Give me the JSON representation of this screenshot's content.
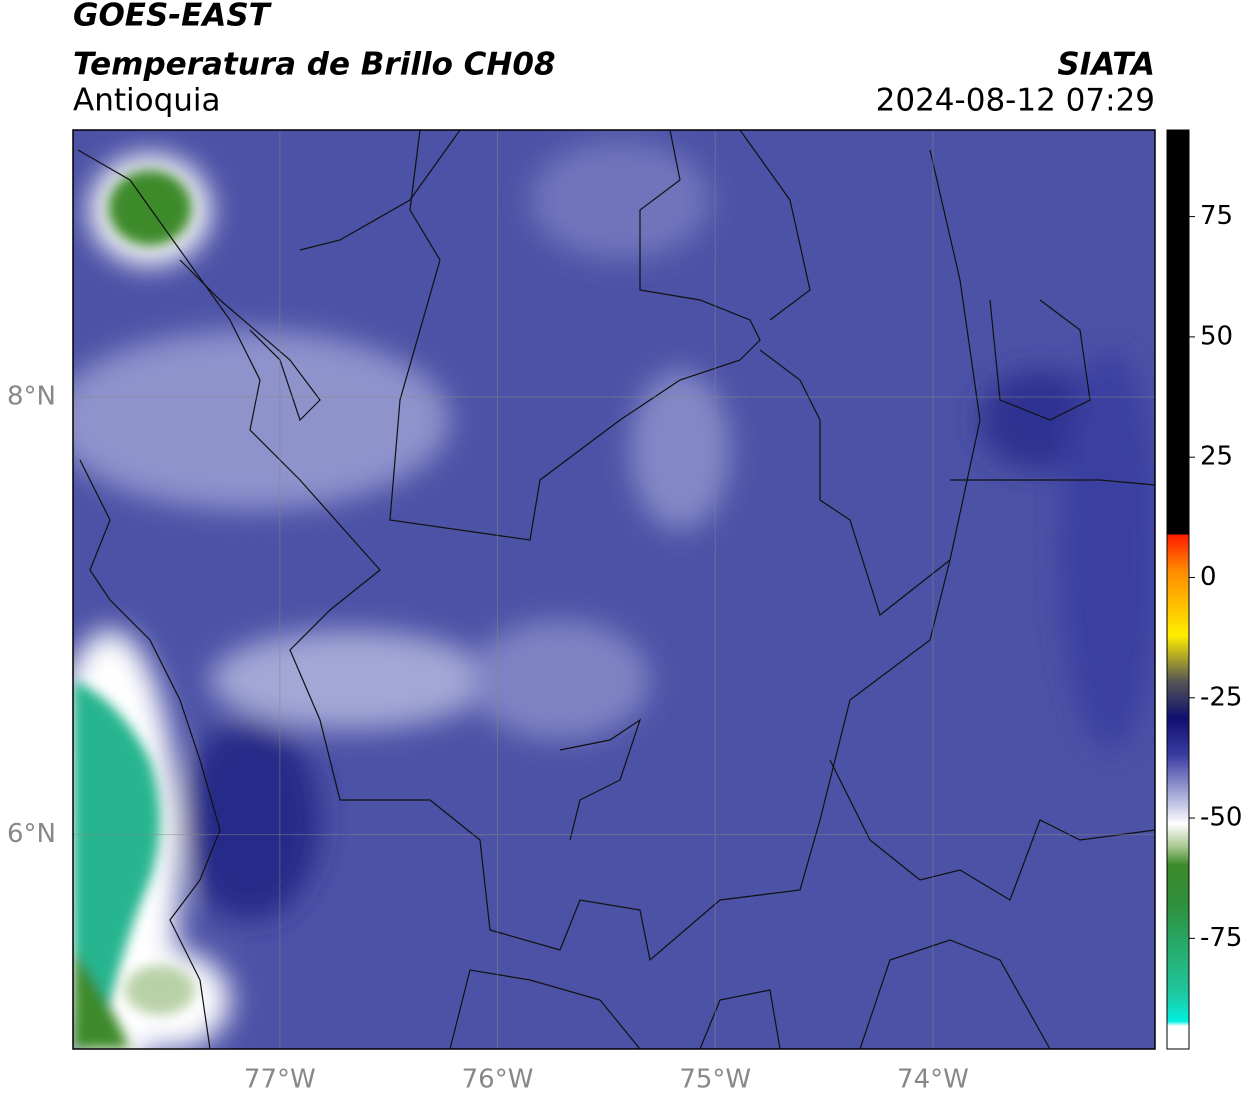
{
  "header": {
    "satellite": "GOES-EAST",
    "product": "Temperatura de Brillo CH08",
    "region": "Antioquia",
    "source": "SIATA",
    "datetime": "2024-08-12 07:29"
  },
  "map": {
    "xlim": [
      -77.95,
      -72.98
    ],
    "ylim": [
      5.02,
      9.22
    ],
    "xticks": [
      {
        "value": -77,
        "label": "77°W"
      },
      {
        "value": -76,
        "label": "76°W"
      },
      {
        "value": -75,
        "label": "75°W"
      },
      {
        "value": -74,
        "label": "74°W"
      }
    ],
    "yticks": [
      {
        "value": 6,
        "label": "6°N"
      },
      {
        "value": 8,
        "label": "8°N"
      }
    ]
  },
  "colorbar": {
    "lim": [
      -98,
      93
    ],
    "ticks": [
      -75,
      -50,
      -25,
      0,
      25,
      50,
      75
    ]
  }
}
